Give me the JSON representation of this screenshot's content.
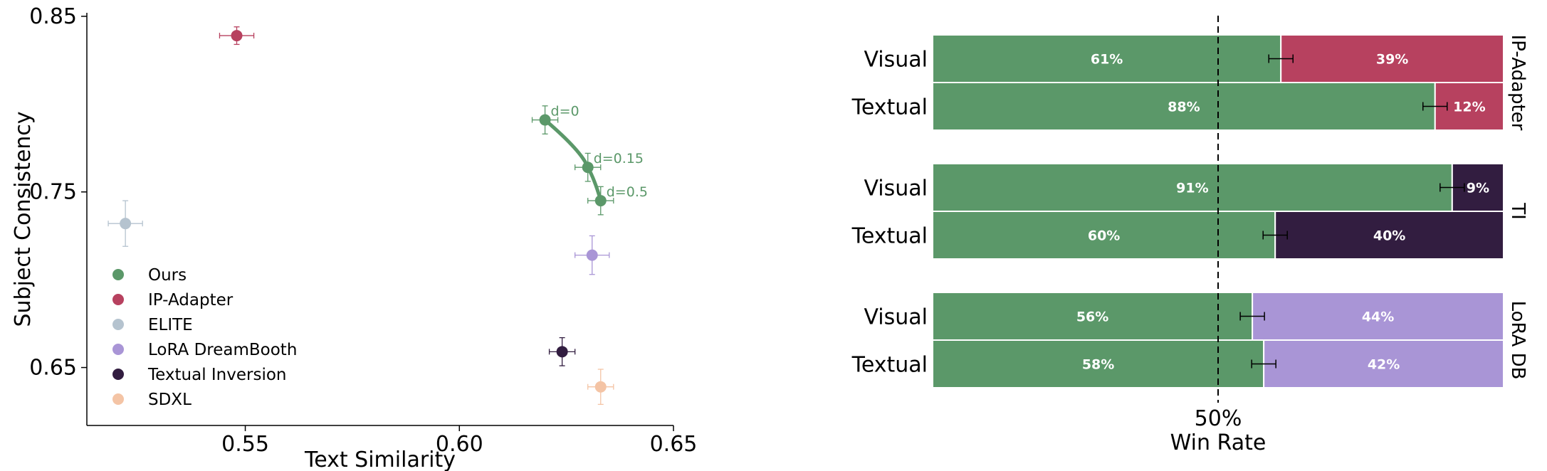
{
  "chart_data": [
    {
      "type": "scatter",
      "xlabel": "Text Similarity",
      "ylabel": "Subject Consistency",
      "xlim": [
        0.513,
        0.65
      ],
      "ylim": [
        0.617,
        0.852
      ],
      "xticks": [
        0.55,
        0.6,
        0.65
      ],
      "xtick_labels": [
        "0.55",
        "0.60",
        "0.65"
      ],
      "yticks": [
        0.65,
        0.75,
        0.85
      ],
      "ytick_labels": [
        "0.65",
        "0.75",
        "0.85"
      ],
      "legend_position": "lower-left",
      "series": [
        {
          "name": "Ours",
          "color": "#5b9869",
          "points": [
            {
              "x": 0.62,
              "y": 0.791,
              "xerr": 0.003,
              "yerr": 0.008,
              "label": "d=0"
            },
            {
              "x": 0.63,
              "y": 0.764,
              "xerr": 0.003,
              "yerr": 0.008,
              "label": "d=0.15"
            },
            {
              "x": 0.633,
              "y": 0.745,
              "xerr": 0.003,
              "yerr": 0.008,
              "label": "d=0.5"
            }
          ]
        },
        {
          "name": "IP-Adapter",
          "color": "#b7415f",
          "points": [
            {
              "x": 0.548,
              "y": 0.839,
              "xerr": 0.004,
              "yerr": 0.005
            }
          ]
        },
        {
          "name": "ELITE",
          "color": "#b5c3cf",
          "points": [
            {
              "x": 0.522,
              "y": 0.732,
              "xerr": 0.004,
              "yerr": 0.013
            }
          ]
        },
        {
          "name": "LoRA DreamBooth",
          "color": "#a995d6",
          "points": [
            {
              "x": 0.631,
              "y": 0.714,
              "xerr": 0.004,
              "yerr": 0.011
            }
          ]
        },
        {
          "name": "Textual Inversion",
          "color": "#321d40",
          "points": [
            {
              "x": 0.624,
              "y": 0.659,
              "xerr": 0.003,
              "yerr": 0.008
            }
          ]
        },
        {
          "name": "SDXL",
          "color": "#f4c4a5",
          "points": [
            {
              "x": 0.633,
              "y": 0.639,
              "xerr": 0.003,
              "yerr": 0.01
            }
          ]
        }
      ]
    },
    {
      "type": "bar",
      "orientation": "horizontal-stacked",
      "xlabel": "Win Rate",
      "reference_line": {
        "value": 50,
        "label": "50%"
      },
      "ours_color": "#5b9869",
      "groups": [
        {
          "name": "IP-Adapter",
          "color": "#b7415f",
          "rows": [
            {
              "label": "Visual",
              "ours": 61,
              "other": 39,
              "ours_label": "61%",
              "other_label": "39%"
            },
            {
              "label": "Textual",
              "ours": 88,
              "other": 12,
              "ours_label": "88%",
              "other_label": "12%"
            }
          ]
        },
        {
          "name": "TI",
          "color": "#321d40",
          "rows": [
            {
              "label": "Visual",
              "ours": 91,
              "other": 9,
              "ours_label": "91%",
              "other_label": "9%"
            },
            {
              "label": "Textual",
              "ours": 60,
              "other": 40,
              "ours_label": "60%",
              "other_label": "40%"
            }
          ]
        },
        {
          "name": "LoRA DB",
          "color": "#a995d6",
          "rows": [
            {
              "label": "Visual",
              "ours": 56,
              "other": 44,
              "ours_label": "56%",
              "other_label": "44%"
            },
            {
              "label": "Textual",
              "ours": 58,
              "other": 42,
              "ours_label": "58%",
              "other_label": "42%"
            }
          ]
        }
      ]
    }
  ]
}
